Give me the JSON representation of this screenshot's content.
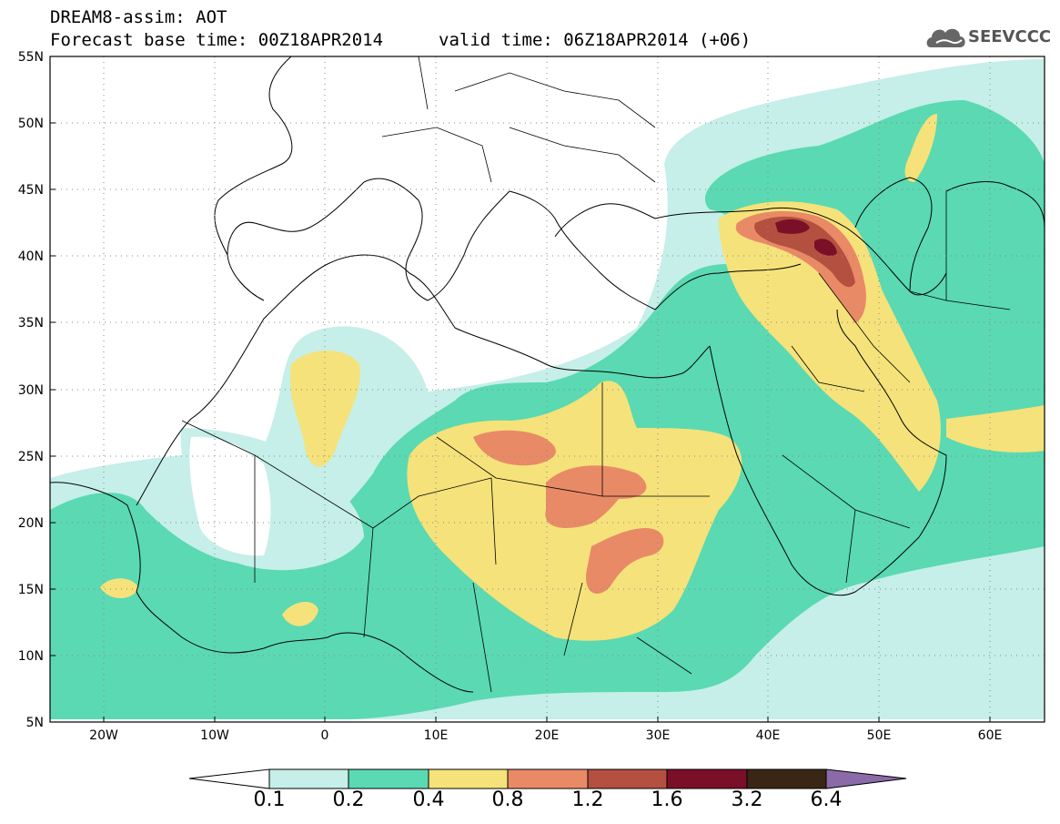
{
  "header": {
    "title": "DREAM8-assim: AOT",
    "base_time": "Forecast base time: 00Z18APR2014",
    "valid_time": "valid time: 06Z18APR2014 (+06)",
    "logo_text": "SEEVCCC"
  },
  "axes": {
    "lat_labels": [
      "55N",
      "50N",
      "45N",
      "40N",
      "35N",
      "30N",
      "25N",
      "20N",
      "15N",
      "10N",
      "5N"
    ],
    "lon_labels": [
      "20W",
      "10W",
      "0",
      "10E",
      "20E",
      "30E",
      "40E",
      "50E",
      "60E"
    ]
  },
  "colorbar": {
    "labels": [
      "0.1",
      "0.2",
      "0.4",
      "0.8",
      "1.2",
      "1.6",
      "3.2",
      "6.4"
    ],
    "colors": [
      "#ffffff",
      "#c5efe8",
      "#5ad9b2",
      "#f5e27a",
      "#e98a66",
      "#b45040",
      "#7a0f28",
      "#3a2614",
      "#8a6aa8"
    ]
  },
  "legend_bins": [
    {
      "range": "<0.1",
      "color": "#ffffff"
    },
    {
      "range": "0.1-0.2",
      "color": "#c5efe8"
    },
    {
      "range": "0.2-0.4",
      "color": "#5ad9b2"
    },
    {
      "range": "0.4-0.8",
      "color": "#f5e27a"
    },
    {
      "range": "0.8-1.2",
      "color": "#e98a66"
    },
    {
      "range": "1.2-1.6",
      "color": "#b45040"
    },
    {
      "range": "1.6-3.2",
      "color": "#7a0f28"
    },
    {
      "range": "3.2-6.4",
      "color": "#3a2614"
    },
    {
      "range": ">6.4",
      "color": "#8a6aa8"
    }
  ]
}
